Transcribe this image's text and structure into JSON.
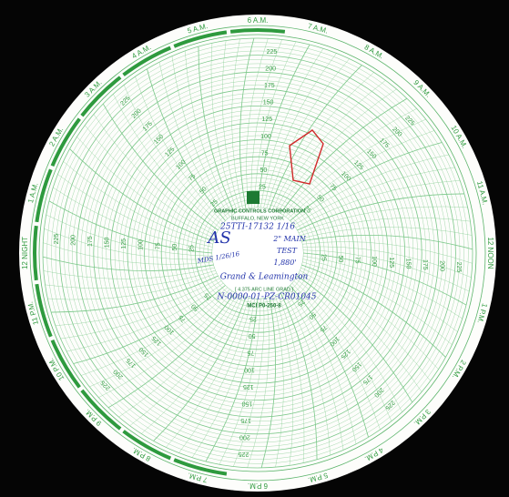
{
  "chart_paper": {
    "hours": [
      "1 A.M.",
      "2 A.M.",
      "3 A.M.",
      "4 A.M.",
      "5 A.M.",
      "6 A.M.",
      "7 A.M.",
      "8 A.M.",
      "9 A.M.",
      "10 A.M.",
      "11 A.M.",
      "12 NOON",
      "1 P.M.",
      "2 P.M.",
      "3 P.M.",
      "4 P.M.",
      "5 P.M.",
      "6 P.M.",
      "7 P.M.",
      "8 P.M.",
      "9 P.M.",
      "10 P.M.",
      "11 P.M.",
      "12 NIGHT"
    ],
    "scale_labels": [
      "25",
      "50",
      "75",
      "100",
      "125",
      "150",
      "175",
      "200",
      "225"
    ],
    "hub": {
      "company": "GRAPHIC CONTROLS CORPORATION",
      "city": "BUFFALO, NEW YORK",
      "grad": "[ 4.375 ARC LINE GRAD ]",
      "code": "MCI P0-250-8"
    },
    "handwriting": {
      "initials": "AS",
      "date": "MDS 1/26/16",
      "id": "25TTI-17132 1/16",
      "main": "2\" MAIN",
      "test": "TEST",
      "length": "1,880'",
      "location": "Grand & Leamington",
      "job": "N-0000-01-PZ-CR01045"
    }
  }
}
